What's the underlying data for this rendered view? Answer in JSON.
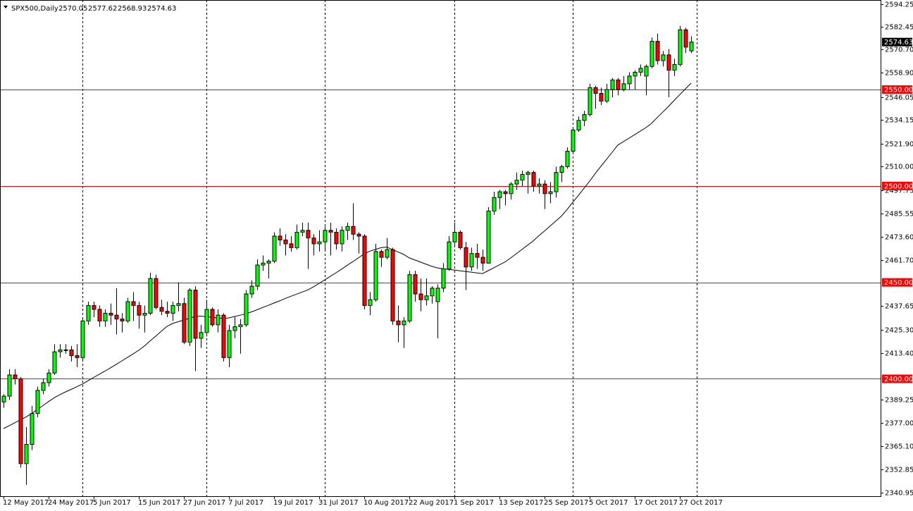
{
  "chart_data": {
    "type": "candlestick",
    "title": "SPX500,Daily",
    "categories": [
      "12 May 2017",
      null,
      null,
      null,
      null,
      null,
      null,
      null,
      "24 May 2017",
      null,
      null,
      null,
      null,
      null,
      null,
      null,
      "5 Jun 2017",
      null,
      null,
      null,
      null,
      null,
      null,
      null,
      "15 Jun 2017",
      null,
      null,
      null,
      null,
      null,
      null,
      null,
      "27 Jun 2017",
      null,
      null,
      null,
      null,
      null,
      null,
      null,
      "7 Jul 2017",
      null,
      null,
      null,
      null,
      null,
      null,
      null,
      "19 Jul 2017",
      null,
      null,
      null,
      null,
      null,
      null,
      null,
      "31 Jul 2017",
      null,
      null,
      null,
      null,
      null,
      null,
      null,
      "10 Aug 2017",
      null,
      null,
      null,
      null,
      null,
      null,
      null,
      "22 Aug 2017",
      null,
      null,
      null,
      null,
      null,
      null,
      null,
      "1 Sep 2017",
      null,
      null,
      null,
      null,
      null,
      null,
      null,
      "13 Sep 2017",
      null,
      null,
      null,
      null,
      null,
      null,
      null,
      "25 Sep 2017",
      null,
      null,
      null,
      null,
      null,
      null,
      null,
      "5 Oct 2017",
      null,
      null,
      null,
      null,
      null,
      null,
      null,
      "17 Oct 2017",
      null,
      null,
      null,
      null,
      null,
      null,
      null,
      "27 Oct 2017",
      null,
      null
    ],
    "open": [
      2388,
      2391,
      2402,
      2400,
      2356,
      2366,
      2382,
      2394,
      2398,
      2403,
      2414,
      2415,
      2415,
      2412,
      2411,
      2430,
      2438,
      2436,
      2430,
      2434,
      2433,
      2431,
      2430,
      2440,
      2438,
      2433,
      2434,
      2452,
      2437,
      2435,
      2434,
      2438,
      2439,
      2419,
      2446,
      2421,
      2424,
      2436,
      2428,
      2433,
      2411,
      2425,
      2427,
      2428,
      2444,
      2448,
      2459,
      2460,
      2461,
      2474,
      2472,
      2470,
      2468,
      2476,
      2477,
      2473,
      2470,
      2471,
      2477,
      2476,
      2470,
      2477,
      2479,
      2475,
      2474,
      2438,
      2441,
      2466,
      2463,
      2467,
      2430,
      2428,
      2430,
      2454,
      2444,
      2441,
      2443,
      2440,
      2447,
      2457,
      2471,
      2476,
      2468,
      2458,
      2465,
      2463,
      2460,
      2487,
      2494,
      2497,
      2496,
      2501,
      2503,
      2506,
      2507,
      2500,
      2501,
      2496,
      2497,
      2507,
      2510,
      2518,
      2529,
      2534,
      2537,
      2551,
      2548,
      2544,
      2550,
      2555,
      2550,
      2553,
      2557,
      2559,
      2557,
      2562,
      2575,
      2565,
      2568,
      2560,
      2563,
      2581,
      2570.05
    ],
    "high": [
      2392,
      2405,
      2405,
      2401,
      2375,
      2386,
      2396,
      2400,
      2405,
      2418,
      2418,
      2418,
      2417,
      2418,
      2431,
      2440,
      2440,
      2438,
      2436,
      2439,
      2447,
      2434,
      2442,
      2445,
      2440,
      2438,
      2455,
      2454,
      2441,
      2440,
      2440,
      2450,
      2442,
      2447,
      2448,
      2428,
      2441,
      2437,
      2436,
      2434,
      2428,
      2432,
      2431,
      2446,
      2451,
      2462,
      2464,
      2462,
      2476,
      2478,
      2475,
      2474,
      2480,
      2481,
      2481,
      2475,
      2477,
      2479,
      2481,
      2478,
      2479,
      2481,
      2491,
      2476,
      2475,
      2445,
      2470,
      2467,
      2473,
      2468,
      2438,
      2432,
      2456,
      2456,
      2452,
      2452,
      2448,
      2449,
      2460,
      2474,
      2481,
      2477,
      2471,
      2468,
      2470,
      2467,
      2489,
      2497,
      2498,
      2498,
      2502,
      2507,
      2508,
      2508,
      2508,
      2504,
      2503,
      2502,
      2510,
      2511,
      2520,
      2530,
      2536,
      2539,
      2553,
      2552,
      2551,
      2553,
      2556,
      2556,
      2557,
      2559,
      2560,
      2563,
      2563,
      2577,
      2579,
      2570,
      2571,
      2566,
      2583,
      2582,
      2577.62
    ],
    "low": [
      2385,
      2389,
      2397,
      2354,
      2345,
      2363,
      2380,
      2392,
      2396,
      2402,
      2411,
      2413,
      2409,
      2406,
      2410,
      2428,
      2432,
      2427,
      2427,
      2428,
      2423,
      2424,
      2429,
      2430,
      2426,
      2424,
      2433,
      2436,
      2433,
      2432,
      2430,
      2435,
      2418,
      2417,
      2404,
      2416,
      2422,
      2427,
      2424,
      2409,
      2406,
      2421,
      2413,
      2427,
      2442,
      2446,
      2456,
      2452,
      2460,
      2469,
      2464,
      2466,
      2467,
      2474,
      2457,
      2464,
      2466,
      2467,
      2464,
      2467,
      2466,
      2472,
      2472,
      2465,
      2436,
      2433,
      2440,
      2458,
      2462,
      2428,
      2419,
      2416,
      2429,
      2440,
      2435,
      2438,
      2439,
      2421,
      2445,
      2456,
      2469,
      2467,
      2446,
      2456,
      2457,
      2456,
      2460,
      2485,
      2488,
      2490,
      2493,
      2498,
      2500,
      2496,
      2497,
      2496,
      2488,
      2491,
      2494,
      2502,
      2509,
      2517,
      2528,
      2531,
      2536,
      2540,
      2542,
      2543,
      2546,
      2547,
      2549,
      2550,
      2550,
      2557,
      2547,
      2561,
      2563,
      2562,
      2546,
      2557,
      2562,
      2569,
      2568.93
    ],
    "close": [
      2391,
      2402,
      2400,
      2356,
      2366,
      2382,
      2394,
      2398,
      2403,
      2414,
      2415,
      2415,
      2412,
      2411,
      2430,
      2438,
      2436,
      2430,
      2434,
      2433,
      2431,
      2430,
      2440,
      2438,
      2433,
      2434,
      2452,
      2437,
      2435,
      2434,
      2438,
      2439,
      2419,
      2446,
      2421,
      2424,
      2436,
      2428,
      2433,
      2411,
      2425,
      2427,
      2428,
      2444,
      2448,
      2459,
      2460,
      2461,
      2474,
      2472,
      2470,
      2468,
      2476,
      2477,
      2473,
      2470,
      2471,
      2477,
      2476,
      2470,
      2477,
      2479,
      2475,
      2474,
      2438,
      2441,
      2466,
      2463,
      2467,
      2430,
      2428,
      2430,
      2454,
      2444,
      2441,
      2443,
      2447,
      2447,
      2457,
      2471,
      2476,
      2468,
      2458,
      2465,
      2463,
      2460,
      2487,
      2494,
      2497,
      2496,
      2501,
      2503,
      2506,
      2507,
      2500,
      2501,
      2496,
      2497,
      2507,
      2510,
      2518,
      2529,
      2534,
      2537,
      2551,
      2548,
      2544,
      2550,
      2555,
      2550,
      2553,
      2557,
      2559,
      2561,
      2562,
      2575,
      2565,
      2568,
      2560,
      2563,
      2581,
      2572,
      2574.63
    ],
    "moving_average": [
      2374.2,
      2375.7,
      2377.2,
      2378.7,
      2380.2,
      2382.0,
      2384.1,
      2386.1,
      2388.2,
      2390.2,
      2391.8,
      2393.2,
      2394.5,
      2395.9,
      2397.3,
      2399.0,
      2400.7,
      2402.4,
      2404.0,
      2405.7,
      2407.5,
      2409.3,
      2411.1,
      2412.9,
      2414.8,
      2417.0,
      2419.6,
      2422.1,
      2424.7,
      2427.2,
      2428.7,
      2429.6,
      2430.5,
      2431.4,
      2432.3,
      2432.5,
      2432.2,
      2431.9,
      2431.6,
      2431.3,
      2431.6,
      2432.3,
      2433.0,
      2433.7,
      2434.7,
      2435.8,
      2437.0,
      2438.1,
      2439.3,
      2440.4,
      2441.7,
      2442.8,
      2443.9,
      2445.0,
      2446.1,
      2447.7,
      2449.5,
      2451.3,
      2453.2,
      2455.0,
      2456.9,
      2458.9,
      2460.8,
      2462.8,
      2464.8,
      2466.2,
      2467.1,
      2468.0,
      2468.3,
      2467.0,
      2465.8,
      2464.5,
      2462.7,
      2461.6,
      2460.5,
      2459.4,
      2458.3,
      2457.5,
      2457.1,
      2456.7,
      2456.4,
      2456.0,
      2455.6,
      2455.3,
      2454.9,
      2454.6,
      2456.1,
      2457.6,
      2459.1,
      2460.6,
      2462.7,
      2464.9,
      2467.1,
      2469.3,
      2471.5,
      2474.2,
      2476.7,
      2479.3,
      2481.8,
      2484.4,
      2487.8,
      2491.5,
      2495.1,
      2498.8,
      2502.5,
      2506.5,
      2510.2,
      2513.8,
      2517.5,
      2521.2,
      2523.0,
      2524.8,
      2526.6,
      2528.5,
      2530.3,
      2532.5,
      2535.5,
      2538.4,
      2541.3,
      2544.4,
      2547.4,
      2550.4,
      2553.3
    ],
    "up_color": "#00ff00",
    "down_color": "#ff0000",
    "ma_color": "#000000",
    "level_color": "#ff0000",
    "levels": [
      {
        "value": 2550,
        "label": "2550.00"
      },
      {
        "value": 2500,
        "label": "2500.00"
      },
      {
        "value": 2450,
        "label": "2450.00"
      },
      {
        "value": 2400,
        "label": "2400.00"
      }
    ],
    "ylim": [
      2339.12,
      2596.44
    ],
    "yticks": [
      2594.25,
      2582.45,
      {
        "value": 2570.7,
        "label": "2570.70"
      },
      {
        "value": 2558.9,
        "label": "2558.90"
      },
      2546.05,
      2534.15,
      {
        "value": 2521.9,
        "label": "2521.90"
      },
      {
        "value": 2510,
        "label": "2510.00"
      },
      2497.75,
      2485.55,
      {
        "value": 2473.6,
        "label": "2473.60"
      },
      {
        "value": 2461.7,
        "label": "2461.70"
      },
      2437.65,
      {
        "value": 2425.3,
        "label": "2425.30"
      },
      {
        "value": 2413.4,
        "label": "2413.40"
      },
      2389.25,
      {
        "value": 2377,
        "label": "2377.00"
      },
      {
        "value": 2365.1,
        "label": "2365.10"
      },
      2352.85,
      2340.95
    ]
  }
}
